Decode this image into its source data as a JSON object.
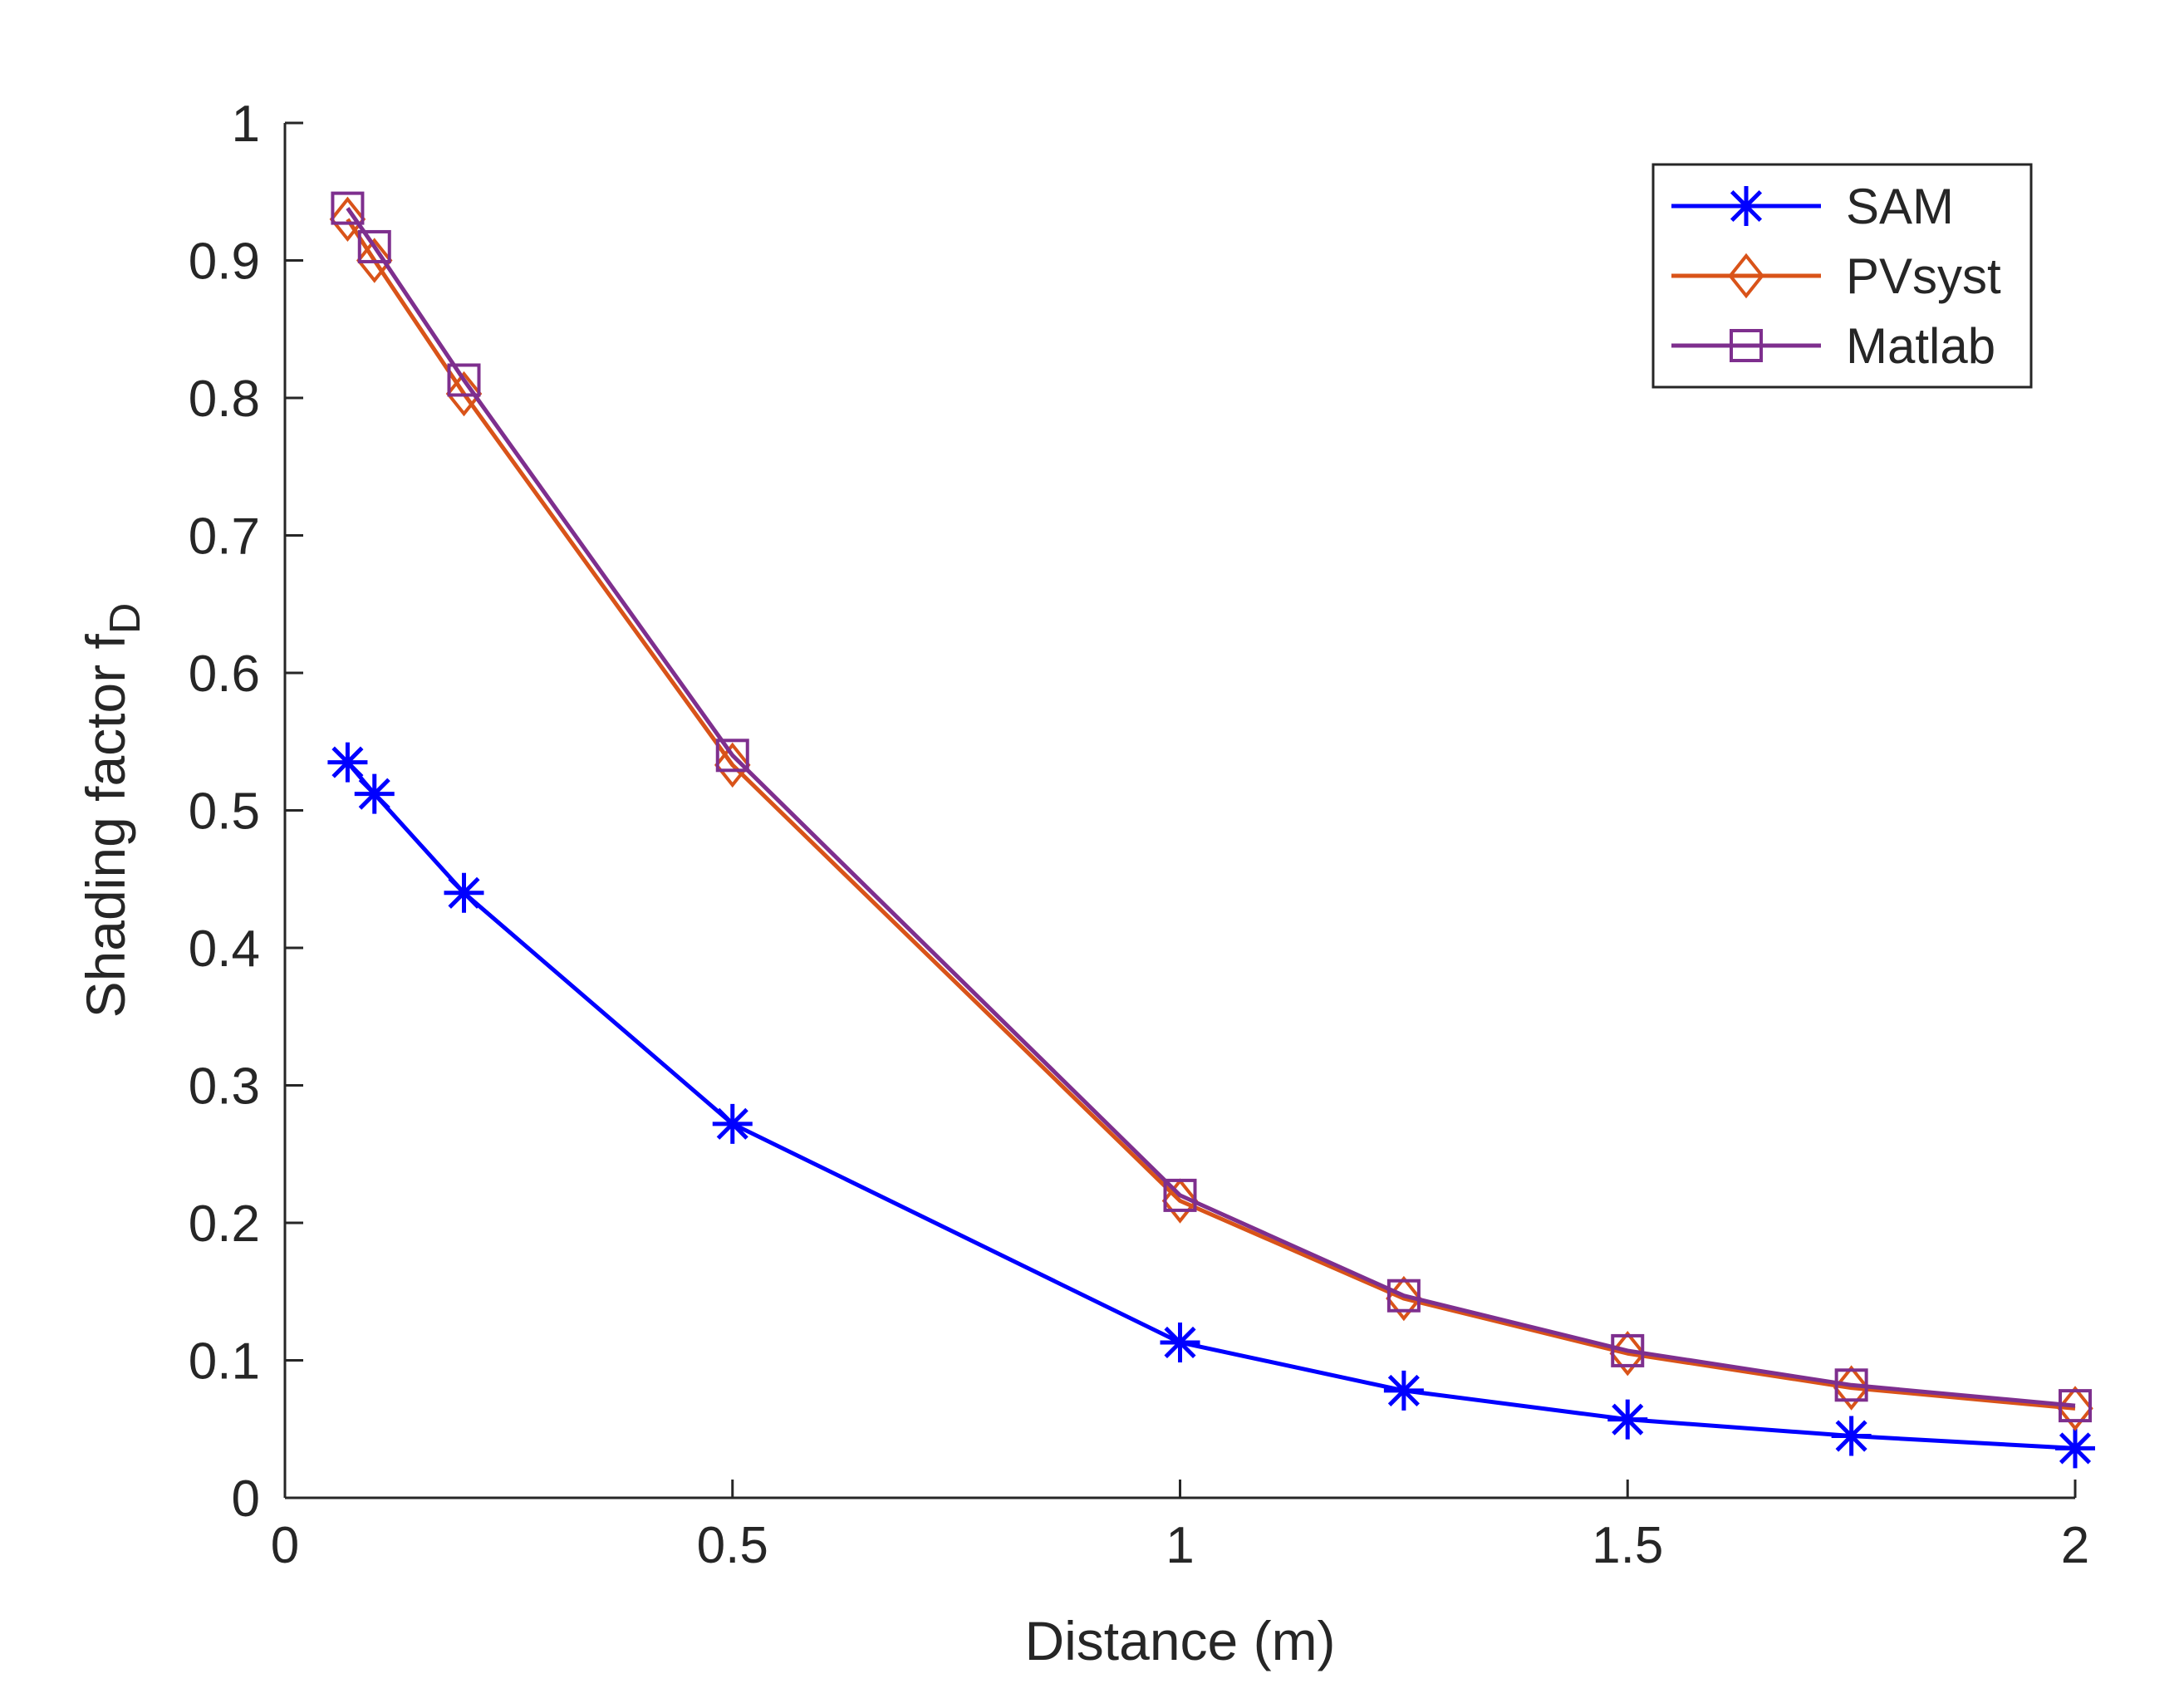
{
  "chart_data": {
    "type": "line",
    "title": "",
    "xlabel": "Distance (m)",
    "ylabel": "Shading factor  f",
    "ylabel_subscript": "D",
    "xlim": [
      0,
      2
    ],
    "ylim": [
      0,
      1
    ],
    "xticks": [
      0,
      0.5,
      1,
      1.5,
      2
    ],
    "xtick_labels": [
      "0",
      "0.5",
      "1",
      "1.5",
      "2"
    ],
    "yticks": [
      0,
      0.1,
      0.2,
      0.3,
      0.4,
      0.5,
      0.6,
      0.7,
      0.8,
      0.9,
      1
    ],
    "ytick_labels": [
      "0",
      "0.1",
      "0.2",
      "0.3",
      "0.4",
      "0.5",
      "0.6",
      "0.7",
      "0.8",
      "0.9",
      "1"
    ],
    "grid": false,
    "legend_position": "top-right",
    "x": [
      0.07,
      0.1,
      0.2,
      0.5,
      1.0,
      1.25,
      1.5,
      1.75,
      2.0
    ],
    "series": [
      {
        "name": "SAM",
        "color": "#0000ff",
        "marker": "asterisk",
        "values": [
          0.535,
          0.512,
          0.44,
          0.272,
          0.113,
          0.078,
          0.057,
          0.045,
          0.036
        ]
      },
      {
        "name": "PVsyst",
        "color": "#d95319",
        "marker": "diamond",
        "values": [
          0.93,
          0.9,
          0.803,
          0.533,
          0.216,
          0.145,
          0.105,
          0.08,
          0.065
        ]
      },
      {
        "name": "Matlab",
        "color": "#7e2f8e",
        "marker": "square",
        "values": [
          0.938,
          0.91,
          0.813,
          0.54,
          0.22,
          0.147,
          0.107,
          0.082,
          0.067
        ]
      }
    ]
  }
}
